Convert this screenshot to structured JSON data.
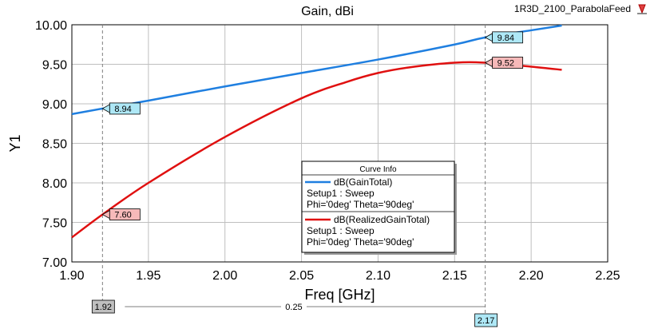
{
  "chart_data": {
    "type": "line",
    "title": "Gain, dBi",
    "project_label": "1R3D_2100_ParabolaFeed",
    "xlabel": "Freq [GHz]",
    "ylabel": "Y1",
    "xlim": [
      1.9,
      2.25
    ],
    "ylim": [
      7.0,
      10.0
    ],
    "x_ticks": [
      "1.90",
      "1.95",
      "2.00",
      "2.05",
      "2.10",
      "2.15",
      "2.20",
      "2.25"
    ],
    "y_ticks": [
      "7.00",
      "7.50",
      "8.00",
      "8.50",
      "9.00",
      "9.50",
      "10.00"
    ],
    "grid": true,
    "legend": {
      "title": "Curve Info",
      "placement": "center-right",
      "entries": [
        {
          "name": "dB(GainTotal)",
          "line1": "Setup1 : Sweep",
          "line2": "Phi='0deg' Theta='90deg'"
        },
        {
          "name": "dB(RealizedGainTotal)",
          "line1": "Setup1 : Sweep",
          "line2": "Phi='0deg' Theta='90deg'"
        }
      ]
    },
    "series": [
      {
        "name": "dB(GainTotal)",
        "color": "#1f7fe0",
        "x": [
          1.9,
          1.92,
          1.95,
          2.0,
          2.05,
          2.1,
          2.15,
          2.17,
          2.2,
          2.22
        ],
        "y": [
          8.87,
          8.94,
          9.04,
          9.22,
          9.39,
          9.56,
          9.75,
          9.84,
          9.93,
          9.99
        ]
      },
      {
        "name": "dB(RealizedGainTotal)",
        "color": "#e01010",
        "x": [
          1.9,
          1.92,
          1.95,
          2.0,
          2.05,
          2.08,
          2.1,
          2.12,
          2.15,
          2.17,
          2.2,
          2.22
        ],
        "y": [
          7.31,
          7.6,
          8.0,
          8.58,
          9.07,
          9.28,
          9.39,
          9.46,
          9.52,
          9.52,
          9.47,
          9.43
        ]
      }
    ],
    "markers": [
      {
        "x": 1.92,
        "y": 8.94,
        "label": "8.94",
        "series": "dB(GainTotal)"
      },
      {
        "x": 1.92,
        "y": 7.6,
        "label": "7.60",
        "series": "dB(RealizedGainTotal)"
      },
      {
        "x": 2.17,
        "y": 9.84,
        "label": "9.84",
        "series": "dB(GainTotal)"
      },
      {
        "x": 2.17,
        "y": 9.52,
        "label": "9.52",
        "series": "dB(RealizedGainTotal)"
      }
    ],
    "delta_marker": {
      "x1": 1.92,
      "x1_label": "1.92",
      "x2": 2.17,
      "x2_label": "2.17",
      "delta_label": "0.25"
    }
  }
}
